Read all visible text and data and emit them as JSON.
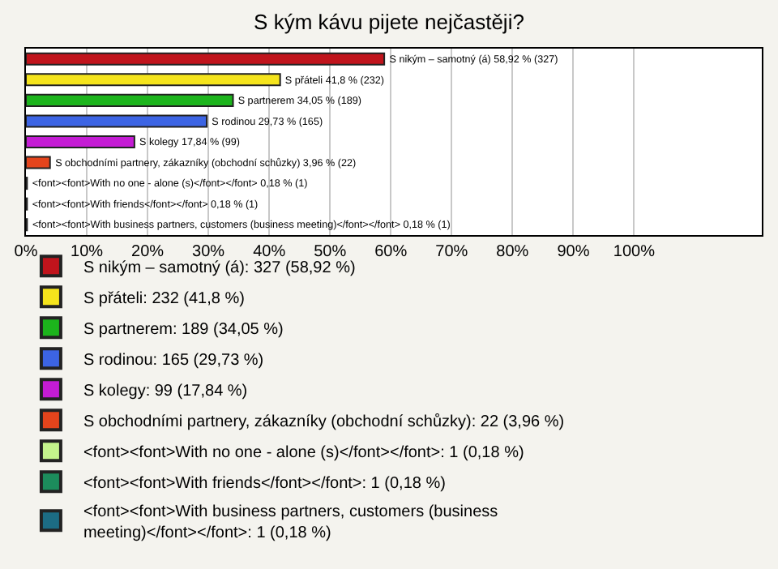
{
  "chart_data": {
    "type": "bar",
    "orientation": "horizontal",
    "title": "S kým kávu pijete nejčastěji?",
    "categories": [
      null,
      null,
      null,
      null,
      null,
      null,
      null,
      null,
      null
    ],
    "series": [
      {
        "name": "S nikým – samotný (á): 327 (58,92 %)",
        "color": "#c0141c",
        "values": [
          58.92,
          null,
          null,
          null,
          null,
          null,
          null,
          null,
          null
        ],
        "value_labels": [
          "S nikým – samotný (á) 58,92 % (327)",
          null,
          null,
          null,
          null,
          null,
          null,
          null,
          null
        ]
      },
      {
        "name": "S přáteli: 232 (41,8 %)",
        "color": "#f5e41c",
        "values": [
          null,
          41.8,
          null,
          null,
          null,
          null,
          null,
          null,
          null
        ],
        "value_labels": [
          null,
          "S přáteli 41,8 % (232)",
          null,
          null,
          null,
          null,
          null,
          null,
          null
        ]
      },
      {
        "name": "S partnerem: 189 (34,05 %)",
        "color": "#1cb41c",
        "values": [
          null,
          null,
          34.05,
          null,
          null,
          null,
          null,
          null,
          null
        ],
        "value_labels": [
          null,
          null,
          "S partnerem 34,05 % (189)",
          null,
          null,
          null,
          null,
          null,
          null
        ]
      },
      {
        "name": "S rodinou: 165 (29,73 %)",
        "color": "#3c64e4",
        "values": [
          null,
          null,
          null,
          29.73,
          null,
          null,
          null,
          null,
          null
        ],
        "value_labels": [
          null,
          null,
          null,
          "S rodinou 29,73 % (165)",
          null,
          null,
          null,
          null,
          null
        ]
      },
      {
        "name": "S kolegy: 99 (17,84 %)",
        "color": "#c41cd4",
        "values": [
          null,
          null,
          null,
          null,
          17.84,
          null,
          null,
          null,
          null
        ],
        "value_labels": [
          null,
          null,
          null,
          null,
          "S kolegy 17,84 % (99)",
          null,
          null,
          null,
          null
        ]
      },
      {
        "name": "S obchodními partnery, zákazníky (obchodní schůzky): 22 (3,96 %)",
        "color": "#e4441c",
        "values": [
          null,
          null,
          null,
          null,
          null,
          3.96,
          null,
          null,
          null
        ],
        "value_labels": [
          null,
          null,
          null,
          null,
          null,
          "S obchodními partnery, zákazníky (obchodní schůzky) 3,96 % (22)",
          null,
          null,
          null
        ]
      },
      {
        "name": "<font><font>With no one - alone (s)</font></font>: 1 (0,18 %)",
        "color": "#c4f48c",
        "values": [
          null,
          null,
          null,
          null,
          null,
          null,
          0.18,
          null,
          null
        ],
        "value_labels": [
          null,
          null,
          null,
          null,
          null,
          null,
          "<font><font>With no one - alone (s)</font></font> 0,18 % (1)",
          null,
          null
        ]
      },
      {
        "name": "<font><font>With friends</font></font>: 1 (0,18 %)",
        "color": "#1c8c5c",
        "values": [
          null,
          null,
          null,
          null,
          null,
          null,
          null,
          0.18,
          null
        ],
        "value_labels": [
          null,
          null,
          null,
          null,
          null,
          null,
          null,
          "<font><font>With friends</font></font> 0,18 % (1)",
          null
        ]
      },
      {
        "name": "<font><font>With business partners, customers (business meeting)</font></font>: 1 (0,18 %)",
        "color": "#1c6c84",
        "values": [
          null,
          null,
          null,
          null,
          null,
          null,
          null,
          null,
          0.18
        ],
        "value_labels": [
          null,
          null,
          null,
          null,
          null,
          null,
          null,
          null,
          "<font><font>With business partners, customers (business meeting)</font></font> 0,18 % (1)"
        ]
      }
    ],
    "xlim": [
      0,
      121
    ],
    "xticks": [
      {
        "value": 0,
        "label": "0%"
      },
      {
        "value": 10,
        "label": "10%"
      },
      {
        "value": 20,
        "label": "20%"
      },
      {
        "value": 30,
        "label": "30%"
      },
      {
        "value": 40,
        "label": "40%"
      },
      {
        "value": 50,
        "label": "50%"
      },
      {
        "value": 60,
        "label": "60%"
      },
      {
        "value": 70,
        "label": "70%"
      },
      {
        "value": 80,
        "label": "80%"
      },
      {
        "value": 90,
        "label": "90%"
      },
      {
        "value": 100,
        "label": "100%"
      }
    ],
    "grid": "x",
    "legend": "bottom",
    "tick_labels": "x"
  }
}
